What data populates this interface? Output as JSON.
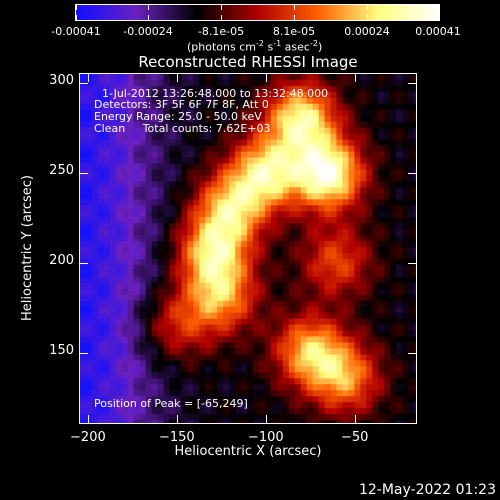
{
  "colorbar": {
    "ticks": [
      "-0.00041",
      "-0.00024",
      "-8.1e-05",
      "8.1e-05",
      "0.00024",
      "0.00041"
    ],
    "units_text": "(photons cm",
    "units_sup1": "-2",
    "units_mid": " s",
    "units_sup2": "-1",
    "units_end": " asec",
    "units_sup3": "-2",
    "units_close": ")",
    "colors": [
      "#1010ff",
      "#6a20c0",
      "#000000",
      "#b00000",
      "#ff6000",
      "#ffff80",
      "#ffffff"
    ]
  },
  "chart_data": {
    "type": "heatmap",
    "title": "Reconstructed RHESSI Image",
    "xlabel": "Heliocentric X (arcsec)",
    "ylabel": "Heliocentric Y (arcsec)",
    "xlim": [
      -205,
      -15
    ],
    "ylim": [
      110,
      305
    ],
    "xticks": [
      -200,
      -150,
      -100,
      -50
    ],
    "yticks": [
      150,
      200,
      250,
      300
    ],
    "xtick_labels": [
      "−200",
      "−150",
      "−100",
      "−50"
    ],
    "ytick_labels": [
      "150",
      "200",
      "250",
      "300"
    ],
    "colorbar_range": [
      -0.00041,
      0.00041
    ],
    "sources": [
      {
        "x": -65,
        "y": 249,
        "amp": 1.0
      },
      {
        "x": -80,
        "y": 280,
        "amp": 0.85
      },
      {
        "x": -100,
        "y": 250,
        "amp": 0.8
      },
      {
        "x": -120,
        "y": 230,
        "amp": 0.7
      },
      {
        "x": -130,
        "y": 205,
        "amp": 0.75
      },
      {
        "x": -125,
        "y": 180,
        "amp": 0.6
      },
      {
        "x": -75,
        "y": 150,
        "amp": 0.7
      },
      {
        "x": -55,
        "y": 135,
        "amp": 0.6
      },
      {
        "x": -60,
        "y": 200,
        "amp": 0.45
      },
      {
        "x": -150,
        "y": 165,
        "amp": 0.4
      }
    ]
  },
  "annotations": {
    "time_range": "1-Jul-2012 13:26:48.000 to 13:32:48.000",
    "detectors": "Detectors: 3F 5F 6F 7F 8F, Att 0",
    "energy": "Energy Range: 25.0 - 50.0 keV",
    "clean": "Clean     Total counts: 7.62E+03",
    "peak": "Position of Peak = [-65,249]"
  },
  "footer_date": "12-May-2022 01:23"
}
